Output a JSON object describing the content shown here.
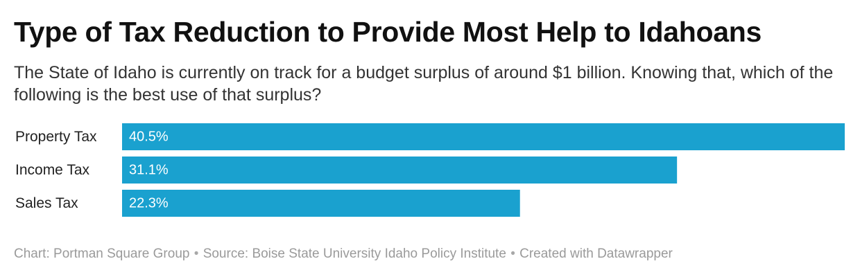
{
  "chart_data": {
    "type": "bar",
    "orientation": "horizontal",
    "title": "Type of Tax Reduction to Provide Most Help to Idahoans",
    "subtitle": "The State of Idaho is currently on track for a budget surplus of around $1 billion. Knowing that, which of the following is the best use of that surplus?",
    "categories": [
      "Property Tax",
      "Income Tax",
      "Sales Tax"
    ],
    "values": [
      40.5,
      31.1,
      22.3
    ],
    "value_labels": [
      "40.5%",
      "31.1%",
      "22.3%"
    ],
    "bar_color": "#1aa1cf",
    "label_color": "#ffffff",
    "xlim": [
      0,
      40.5
    ],
    "grid": false,
    "legend": "none"
  },
  "footer": {
    "chart_credit": "Chart: Portman Square Group",
    "separator": "•",
    "source": "Source: Boise State University Idaho Policy Institute",
    "created_with": "Created with Datawrapper"
  }
}
